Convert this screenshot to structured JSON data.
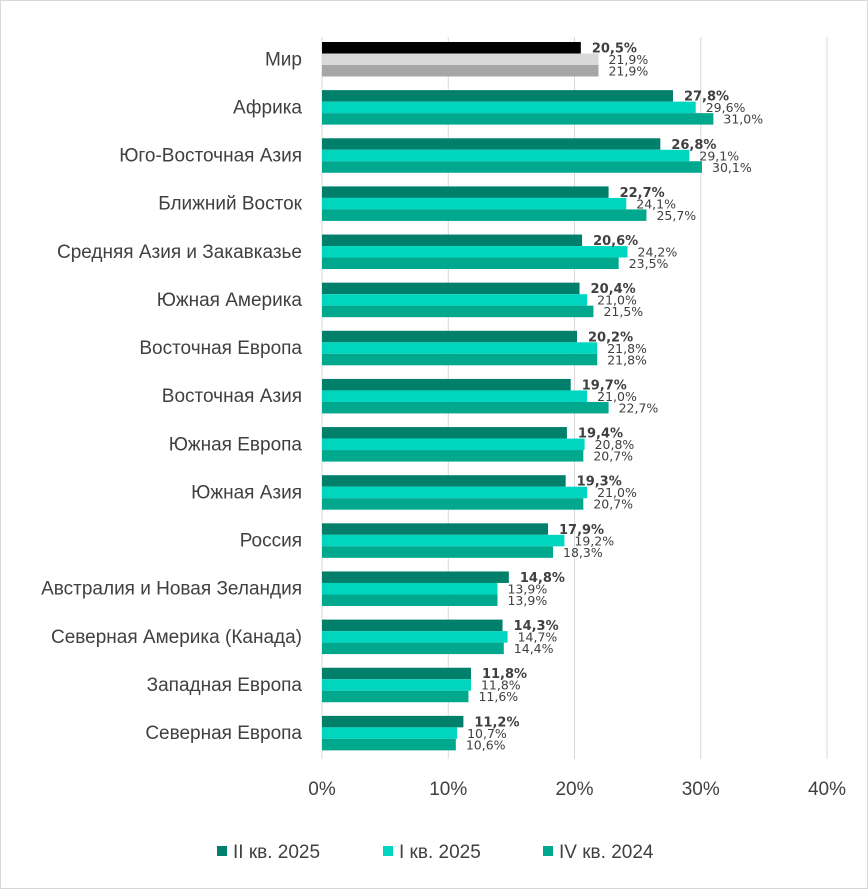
{
  "chart_data": {
    "type": "bar",
    "orientation": "horizontal",
    "categories": [
      "Мир",
      "Африка",
      "Юго-Восточная Азия",
      "Ближний Восток",
      "Средняя Азия и Закавказье",
      "Южная Америка",
      "Восточная Европа",
      "Восточная Азия",
      "Южная Европа",
      "Южная Азия",
      "Россия",
      "Австралия и Новая Зеландия",
      "Северная Америка (Канада)",
      "Западная Европа",
      "Северная Европа"
    ],
    "series": [
      {
        "name": "II кв. 2025",
        "color": "#00806b",
        "values": [
          20.5,
          27.8,
          26.8,
          22.7,
          20.6,
          20.4,
          20.2,
          19.7,
          19.4,
          19.3,
          17.9,
          14.8,
          14.3,
          11.8,
          11.2
        ],
        "labels": [
          "20,5%",
          "27,8%",
          "26,8%",
          "22,7%",
          "20,6%",
          "20,4%",
          "20,2%",
          "19,7%",
          "19,4%",
          "19,3%",
          "17,9%",
          "14,8%",
          "14,3%",
          "11,8%",
          "11,2%"
        ]
      },
      {
        "name": "I кв. 2025",
        "color": "#00d6bf",
        "values": [
          21.9,
          29.6,
          29.1,
          24.1,
          24.2,
          21.0,
          21.8,
          21.0,
          20.8,
          21.0,
          19.2,
          13.9,
          14.7,
          11.8,
          10.7
        ],
        "labels": [
          "21,9%",
          "29,6%",
          "29,1%",
          "24,1%",
          "24,2%",
          "21,0%",
          "21,8%",
          "21,0%",
          "20,8%",
          "21,0%",
          "19,2%",
          "13,9%",
          "14,7%",
          "11,8%",
          "10,7%"
        ]
      },
      {
        "name": "IV кв. 2024",
        "color": "#00a88e",
        "values": [
          21.9,
          31.0,
          30.1,
          25.7,
          23.5,
          21.5,
          21.8,
          22.7,
          20.7,
          20.7,
          18.3,
          13.9,
          14.4,
          11.6,
          10.6
        ],
        "labels": [
          "21,9%",
          "31,0%",
          "30,1%",
          "25,7%",
          "23,5%",
          "21,5%",
          "21,8%",
          "22,7%",
          "20,7%",
          "20,7%",
          "18,3%",
          "13,9%",
          "14,4%",
          "11,6%",
          "10,6%"
        ]
      }
    ],
    "world_colors": [
      "#000000",
      "#d9d9d9",
      "#a6a6a6"
    ],
    "xlim": [
      0,
      40
    ],
    "xticks": [
      "0%",
      "10%",
      "20%",
      "30%",
      "40%"
    ],
    "grid": "vertical",
    "legend_position": "bottom",
    "title": "",
    "xlabel": "",
    "ylabel": ""
  }
}
